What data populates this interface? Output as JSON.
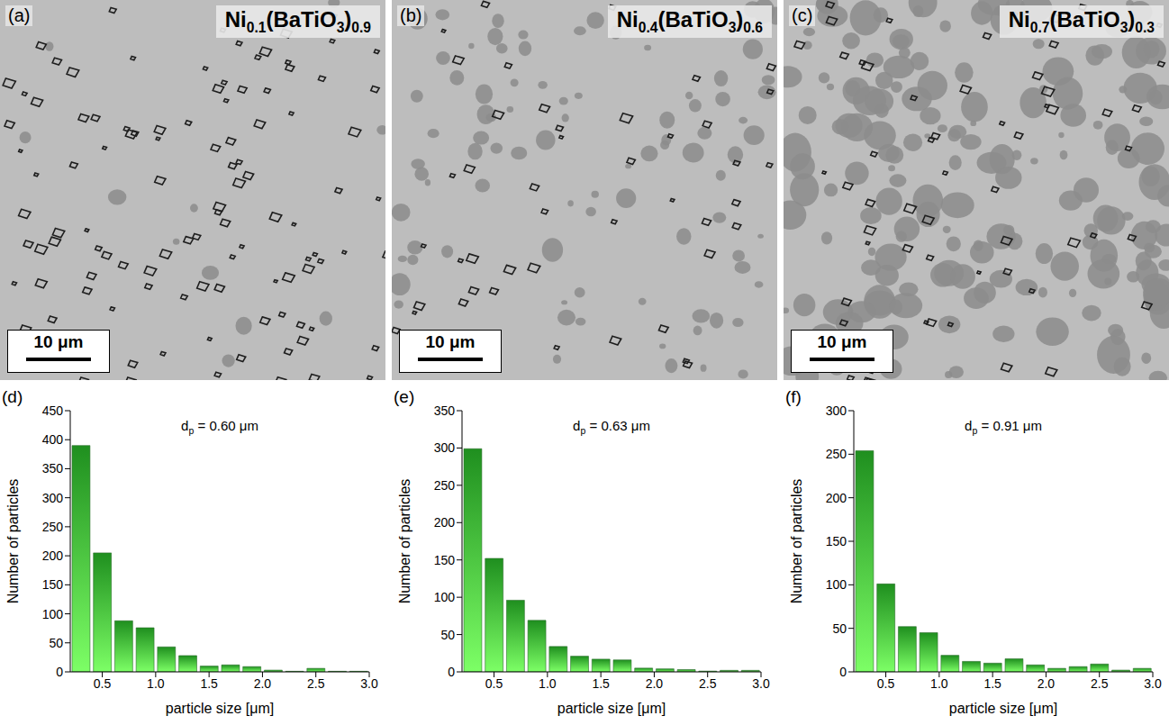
{
  "images": [
    {
      "label": "(a)",
      "title": "Ni0.1(BaTiO3)0.9",
      "scale_bar": "10 μm"
    },
    {
      "label": "(b)",
      "title": "Ni0.4(BaTiO3)0.6",
      "scale_bar": "10 μm"
    },
    {
      "label": "(c)",
      "title": "Ni0.7(BaTiO3)0.3",
      "scale_bar": "10 μm"
    }
  ],
  "chart_data": [
    {
      "type": "histogram",
      "label": "(d)",
      "annotation": "dp = 0.60 μm",
      "x_label": "particle size [μm]",
      "y_label": "Number of particles",
      "color": "#1f8f1f",
      "bins": [
        0.2,
        0.4,
        0.6,
        0.8,
        1.0,
        1.2,
        1.4,
        1.6,
        1.8,
        2.0,
        2.2,
        2.4,
        2.6,
        2.8,
        3.0
      ],
      "counts": [
        390,
        205,
        88,
        76,
        43,
        28,
        10,
        12,
        9,
        3,
        1,
        6,
        1,
        1
      ],
      "xlim": [
        0.2,
        3.0
      ],
      "xticks": [
        0.5,
        {
          "value": 1,
          "label": "1.0"
        },
        1.5,
        {
          "value": 2,
          "label": "2.0"
        },
        2.5,
        {
          "value": 3,
          "label": "3.0"
        }
      ],
      "ylim": [
        0,
        450
      ],
      "yticks": [
        0,
        50,
        100,
        150,
        200,
        250,
        300,
        350,
        400,
        450
      ]
    },
    {
      "type": "histogram",
      "label": "(e)",
      "annotation": "dp = 0.63 μm",
      "x_label": "particle size [μm]",
      "y_label": "Number of particles",
      "color": "#1f8f1f",
      "bins": [
        0.2,
        0.4,
        0.6,
        0.8,
        1.0,
        1.2,
        1.4,
        1.6,
        1.8,
        2.0,
        2.2,
        2.4,
        2.6,
        2.8,
        3.0
      ],
      "counts": [
        299,
        152,
        96,
        69,
        34,
        21,
        17,
        16,
        5,
        4,
        3,
        1,
        2,
        2
      ],
      "xlim": [
        0.2,
        3.0
      ],
      "xticks": [
        0.5,
        {
          "value": 1,
          "label": "1.0"
        },
        1.5,
        {
          "value": 2,
          "label": "2.0"
        },
        2.5,
        {
          "value": 3,
          "label": "3.0"
        }
      ],
      "ylim": [
        0,
        350
      ],
      "yticks": [
        0,
        50,
        100,
        150,
        200,
        250,
        300,
        350
      ]
    },
    {
      "type": "histogram",
      "label": "(f)",
      "annotation": "dp = 0.91 μm",
      "x_label": "particle size [μm]",
      "y_label": "Number of particles",
      "color": "#1f8f1f",
      "bins": [
        0.2,
        0.4,
        0.6,
        0.8,
        1.0,
        1.2,
        1.4,
        1.6,
        1.8,
        2.0,
        2.2,
        2.4,
        2.6,
        2.8,
        3.0
      ],
      "counts": [
        254,
        101,
        52,
        45,
        19,
        12,
        10,
        15,
        8,
        4,
        6,
        9,
        2,
        4
      ],
      "xlim": [
        0.2,
        3.0
      ],
      "xticks": [
        0.5,
        {
          "value": 1,
          "label": "1.0"
        },
        1.5,
        {
          "value": 2,
          "label": "2.0"
        },
        2.5,
        {
          "value": 3,
          "label": "3.0"
        }
      ],
      "ylim": [
        0,
        300
      ],
      "yticks": [
        0,
        50,
        100,
        150,
        200,
        250,
        300
      ]
    }
  ]
}
